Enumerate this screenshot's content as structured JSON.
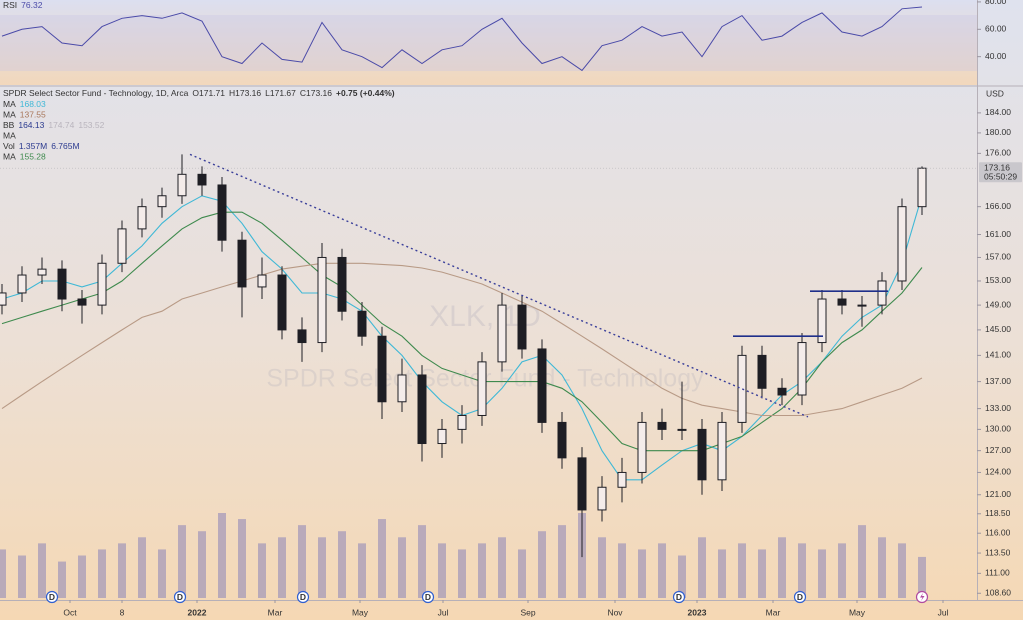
{
  "chart_data": {
    "type": "candlestick",
    "title": "SPDR Select Sector Fund - Technology, 1D, Arca",
    "quote_prefixes": [
      "O",
      "H",
      "L",
      "C"
    ],
    "quote": {
      "open": 171.71,
      "high": 173.16,
      "low": 171.67,
      "close": 173.16,
      "change": "+0.75 (+0.44%)"
    },
    "currency": "USD",
    "watermark": [
      "XLK, 1D",
      "SPDR Select Sector Fund - Technology"
    ],
    "legend": [
      {
        "name": "MA",
        "values": [
          168.03
        ],
        "colors": [
          "#3fb8d6"
        ]
      },
      {
        "name": "MA",
        "values": [
          137.55
        ],
        "colors": [
          "#a8765a"
        ]
      },
      {
        "name": "BB",
        "values": [
          164.13,
          174.74,
          153.52
        ],
        "colors": [
          "#2b3a8f",
          "#b9b4bd",
          "#b9b4bd"
        ]
      },
      {
        "name": "MA"
      },
      {
        "name": "Vol",
        "value_labels": [
          "1.357M",
          "6.765M"
        ],
        "colors": [
          "#2b3a8f",
          "#2b3a8f"
        ]
      },
      {
        "name": "MA",
        "values": [
          155.28
        ],
        "colors": [
          "#3f8a4e"
        ]
      }
    ],
    "log": true,
    "grid": false,
    "xlim": [
      -0.1,
      48.65
    ],
    "xticks": [
      {
        "value": 3.4,
        "label": "Oct"
      },
      {
        "value": 6.0,
        "label": "8"
      },
      {
        "value": 9.75,
        "label": "2022"
      },
      {
        "value": 13.65,
        "label": "Mar"
      },
      {
        "value": 17.9,
        "label": "May"
      },
      {
        "value": 22.05,
        "label": "Jul"
      },
      {
        "value": 26.3,
        "label": "Sep"
      },
      {
        "value": 30.65,
        "label": "Nov"
      },
      {
        "value": 34.75,
        "label": "2023"
      },
      {
        "value": 38.55,
        "label": "Mar"
      },
      {
        "value": 42.75,
        "label": "May"
      },
      {
        "value": 47.05,
        "label": "Jul"
      }
    ],
    "ylim": [
      107.8,
      189.3
    ],
    "yticks": [
      {
        "value": 184,
        "label": "184.00"
      },
      {
        "value": 180,
        "label": "180.00"
      },
      {
        "value": 176,
        "label": "176.00"
      },
      {
        "value": 166,
        "label": "166.00"
      },
      {
        "value": 161,
        "label": "161.00"
      },
      {
        "value": 157,
        "label": "157.00"
      },
      {
        "value": 153,
        "label": "153.00"
      },
      {
        "value": 149,
        "label": "149.00"
      },
      {
        "value": 145,
        "label": "145.00"
      },
      {
        "value": 141,
        "label": "141.00"
      },
      {
        "value": 137,
        "label": "137.00"
      },
      {
        "value": 133,
        "label": "133.00"
      },
      {
        "value": 130,
        "label": "130.00"
      },
      {
        "value": 127,
        "label": "127.00"
      },
      {
        "value": 124,
        "label": "124.00"
      },
      {
        "value": 121,
        "label": "121.00"
      },
      {
        "value": 118.5,
        "label": "118.50"
      },
      {
        "value": 116,
        "label": "116.00"
      },
      {
        "value": 113.5,
        "label": "113.50"
      },
      {
        "value": 111,
        "label": "111.00"
      },
      {
        "value": 108.6,
        "label": "108.60"
      }
    ],
    "candle_color": "#1e1e24",
    "ohlc": [
      [
        149,
        152.5,
        147.5,
        151
      ],
      [
        151,
        155.5,
        149.5,
        154
      ],
      [
        154,
        157,
        152.5,
        155
      ],
      [
        155,
        156.5,
        148,
        150
      ],
      [
        150,
        151.5,
        146,
        149
      ],
      [
        149,
        157.5,
        147.5,
        156
      ],
      [
        156,
        163.5,
        154.5,
        162
      ],
      [
        162,
        167.5,
        160.5,
        166
      ],
      [
        166,
        169.5,
        164,
        168
      ],
      [
        168,
        175.8,
        166.5,
        172
      ],
      [
        172,
        173.5,
        168,
        170
      ],
      [
        170,
        171.5,
        158,
        160
      ],
      [
        160,
        161.5,
        147,
        152
      ],
      [
        152,
        157,
        150,
        154
      ],
      [
        154,
        155.5,
        143.5,
        145
      ],
      [
        145,
        147,
        140,
        143
      ],
      [
        143,
        159.5,
        141.5,
        157
      ],
      [
        157,
        158.5,
        146.5,
        148
      ],
      [
        148,
        149.5,
        142.5,
        144
      ],
      [
        144,
        145.5,
        131.5,
        134
      ],
      [
        134,
        140.5,
        132.5,
        138
      ],
      [
        138,
        139.5,
        125.5,
        128
      ],
      [
        128,
        131.5,
        126,
        130
      ],
      [
        130,
        133.5,
        128,
        132
      ],
      [
        132,
        141.5,
        130.5,
        140
      ],
      [
        140,
        151,
        138.5,
        149
      ],
      [
        149,
        150.5,
        140.5,
        142
      ],
      [
        142,
        143.5,
        129.5,
        131
      ],
      [
        131,
        132.5,
        124.5,
        126
      ],
      [
        126,
        127.5,
        113,
        119
      ],
      [
        119,
        123.5,
        117.5,
        122
      ],
      [
        122,
        126,
        120,
        124
      ],
      [
        124,
        132.5,
        122.5,
        131
      ],
      [
        131,
        133,
        128.5,
        130
      ],
      [
        130,
        137,
        128.5,
        130
      ],
      [
        130,
        131.5,
        121,
        123
      ],
      [
        123,
        132.5,
        121.5,
        131
      ],
      [
        131,
        142.5,
        129.5,
        141
      ],
      [
        141,
        142.5,
        134.5,
        136
      ],
      [
        136,
        137.5,
        133.5,
        135
      ],
      [
        135,
        144.5,
        133.5,
        143
      ],
      [
        143,
        151.5,
        141.5,
        150
      ],
      [
        150,
        151.5,
        147.5,
        149
      ],
      [
        149,
        150.5,
        145.5,
        149
      ],
      [
        149,
        154.5,
        147.5,
        153
      ],
      [
        153,
        167.5,
        151.5,
        166
      ],
      [
        166,
        173.5,
        164.5,
        173.16
      ]
    ],
    "series": [
      {
        "color": "#3fb8d6",
        "values": [
          150,
          151,
          153,
          153,
          152,
          153,
          156,
          159,
          163,
          166,
          168,
          167,
          163,
          158,
          155,
          151,
          151,
          150,
          148,
          144,
          141,
          137,
          134,
          132,
          133,
          136,
          140,
          141,
          138,
          133,
          127,
          123,
          123,
          125,
          127,
          128,
          127,
          129,
          132,
          135,
          137,
          140,
          144,
          147,
          149,
          156,
          168.03
        ]
      },
      {
        "color": "#3f8a4e",
        "values": [
          146,
          147,
          148,
          149,
          150,
          151,
          153,
          156,
          159,
          162,
          164,
          165,
          165,
          163,
          160,
          157,
          154,
          152,
          149,
          146,
          144,
          141,
          139,
          138,
          137,
          137,
          137,
          137,
          136,
          134,
          131,
          128,
          127,
          127,
          127,
          127,
          128,
          129,
          131,
          133,
          136,
          140,
          143,
          145,
          148,
          151,
          155.28
        ]
      },
      {
        "color": "#b89a86",
        "values": [
          133,
          135,
          137,
          139,
          141,
          143,
          145,
          147,
          148,
          150,
          151,
          152,
          153,
          154,
          155,
          155.5,
          156,
          156,
          156,
          155.8,
          155.6,
          155.2,
          154.5,
          153.5,
          152.5,
          151,
          149.5,
          148,
          146,
          144,
          142,
          140,
          138,
          136,
          134.5,
          133.5,
          133,
          132.5,
          132,
          132,
          132,
          132.5,
          133,
          134,
          135,
          136,
          137.55
        ]
      }
    ],
    "volume_color": "#a59ab9",
    "volume": [
      8,
      7,
      9,
      6,
      7,
      8,
      9,
      10,
      8,
      12,
      11,
      14,
      13,
      9,
      10,
      12,
      10,
      11,
      9,
      13,
      10,
      12,
      9,
      8,
      9,
      10,
      8,
      11,
      12,
      14,
      10,
      9,
      8,
      9,
      7,
      10,
      8,
      9,
      8,
      10,
      9,
      8,
      9,
      12,
      10,
      9,
      6.765
    ],
    "rsi": {
      "label": "RSI",
      "value": 76.32,
      "color": "#4a4aa8",
      "ylim": [
        19.3,
        81.4
      ],
      "yticks": [
        {
          "value": 80,
          "label": "80.00"
        },
        {
          "value": 60,
          "label": "60.00"
        },
        {
          "value": 40,
          "label": "40.00"
        }
      ],
      "values": [
        55,
        60,
        62,
        50,
        48,
        62,
        68,
        70,
        68,
        72,
        66,
        40,
        35,
        50,
        38,
        36,
        65,
        45,
        40,
        32,
        45,
        35,
        45,
        48,
        60,
        68,
        50,
        35,
        40,
        30,
        48,
        52,
        62,
        55,
        58,
        40,
        62,
        70,
        52,
        55,
        65,
        72,
        58,
        55,
        62,
        75,
        76.32
      ]
    },
    "drawings": {
      "trendline": {
        "x": [
          9.4,
          40.3
        ],
        "y": [
          175.8,
          131.8
        ],
        "color": "#3a3f9a"
      },
      "levels": [
        {
          "x": [
            36.55,
            41.05
          ],
          "y": 144,
          "color": "#1f2f8a"
        },
        {
          "x": [
            40.4,
            44.3
          ],
          "y": 151.3,
          "color": "#1f2f8a"
        }
      ]
    },
    "dividends": {
      "label": "D",
      "x": [
        2.5,
        8.9,
        15.05,
        21.3,
        33.85,
        39.9
      ]
    },
    "last_price": {
      "value": 173.16,
      "countdown": "05:50:29"
    }
  }
}
